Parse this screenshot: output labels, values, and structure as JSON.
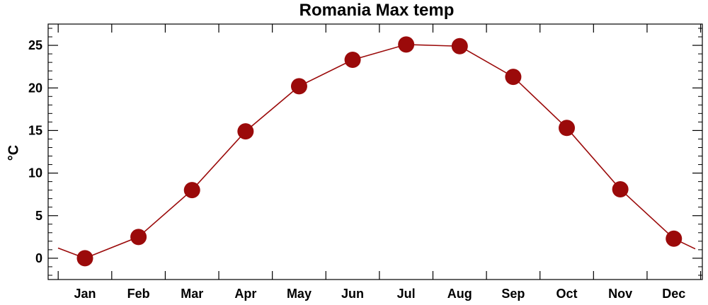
{
  "chart_data": {
    "type": "line",
    "title": "Romania Max temp",
    "xlabel": "",
    "ylabel": "°C",
    "categories": [
      "Jan",
      "Feb",
      "Mar",
      "Apr",
      "May",
      "Jun",
      "Jul",
      "Aug",
      "Sep",
      "Oct",
      "Nov",
      "Dec"
    ],
    "series": [
      {
        "values": [
          0.0,
          2.5,
          8.0,
          14.9,
          20.2,
          23.3,
          25.1,
          24.9,
          21.3,
          15.3,
          8.1,
          2.3
        ]
      }
    ],
    "wrap": {
      "before_jan": 1.2,
      "after_dec": 1.1
    },
    "ylim": [
      -2.5,
      27.5
    ],
    "yticks": [
      0,
      5,
      10,
      15,
      20,
      25
    ],
    "y_minor_step": 1,
    "grid": false,
    "legend": "none",
    "colors": {
      "line": "#9b0a0a",
      "marker": "#9b0a0a",
      "axis": "#000000",
      "background": "#ffffff"
    }
  }
}
